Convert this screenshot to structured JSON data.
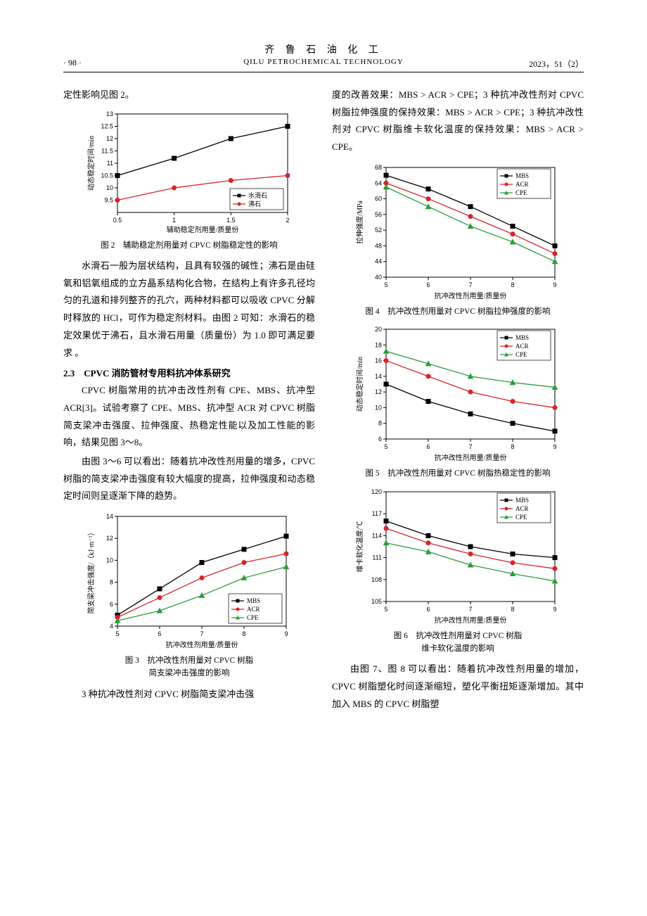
{
  "header": {
    "page_num": "· 98 ·",
    "journal_cn": "齐 鲁 石 油 化 工",
    "journal_en": "QILU PETROCHEMICAL TECHNOLOGY",
    "issue": "2023，51（2）"
  },
  "left": {
    "p1": "定性影响见图 2。",
    "fig2_caption": "图 2　辅助稳定剂用量对 CPVC 树脂稳定性的影响",
    "p2": "水滑石一般为层状结构，且具有较强的碱性；沸石是由硅氧和铝氧组成的立方晶系结构化合物，在结构上有许多孔径均匀的孔道和排列整齐的孔穴，两种材料都可以吸收 CPVC 分解时释放的 HCl，可作为稳定剂材料。由图 2 可知：水滑石的稳定效果优于沸石，且水滑石用量（质量份）为 1.0 即可满足要求 。",
    "s23": "2.3　CPVC 消防管材专用料抗冲体系研究",
    "p3": "CPVC 树脂常用的抗冲击改性剂有 CPE、MBS、抗冲型 ACR[3]。试验考察了 CPE、MBS、抗冲型 ACR 对 CPVC 树脂简支梁冲击强度、拉伸强度、热稳定性能以及加工性能的影响，结果见图 3～8。",
    "p4": "由图 3～6 可以看出：随着抗冲改性剂用量的增多，CPVC 树脂的简支梁冲击强度有较大幅度的提高，拉伸强度和动态稳定时间则呈逐渐下降的趋势。",
    "fig3_caption_l1": "图 3　抗冲改性剂用量对 CPVC 树脂",
    "fig3_caption_l2": "简支梁冲击强度的影响",
    "p5": "3 种抗冲改性剂对 CPVC 树脂简支梁冲击强"
  },
  "right": {
    "p1": "度的改善效果：MBS > ACR > CPE；3 种抗冲改性剂对 CPVC 树脂拉伸强度的保持效果：MBS > ACR > CPE；3 种抗冲改性剂对 CPVC 树脂维卡软化温度的保持效果：MBS > ACR > CPE。",
    "fig4_caption": "图 4　抗冲改性剂用量对 CPVC 树脂拉伸强度的影响",
    "fig5_caption": "图 5　抗冲改性剂用量对 CPVC 树脂热稳定性的影响",
    "fig6_caption_l1": "图 6　抗冲改性剂用量对 CPVC 树脂",
    "fig6_caption_l2": "维卡软化温度的影响",
    "p2": "由图 7、图 8 可以看出：随着抗冲改性剂用量的增加，CPVC 树脂塑化时间逐渐缩短，塑化平衡扭矩逐渐增加。其中加入 MBS 的 CPVC 树脂塑"
  },
  "colors": {
    "mbs": "#000000",
    "acr": "#d82428",
    "cpe": "#2a9d3a",
    "hydrotalcite": "#000000",
    "zeolite": "#d82428",
    "axis": "#000000",
    "bg": "#ffffff"
  },
  "fig2": {
    "type": "line",
    "xlabel": "辅助稳定剂用量/质量份",
    "ylabel": "动态稳定时间/min",
    "xlim": [
      0.5,
      2.0
    ],
    "xticks": [
      0.5,
      1.0,
      1.5,
      2.0
    ],
    "ylim": [
      9.0,
      13.0
    ],
    "yticks": [
      9.5,
      10.0,
      10.5,
      11.0,
      11.5,
      12.0,
      12.5,
      13.0
    ],
    "series": [
      {
        "name": "水滑石",
        "color": "#000000",
        "marker": "square",
        "x": [
          0.5,
          1.0,
          1.5,
          2.0
        ],
        "y": [
          10.5,
          11.2,
          12.0,
          12.5
        ]
      },
      {
        "name": "沸石",
        "color": "#d82428",
        "marker": "circle",
        "x": [
          0.5,
          1.0,
          1.5,
          2.0
        ],
        "y": [
          9.5,
          10.0,
          10.3,
          10.5
        ]
      }
    ],
    "legend_pos": "bottom-right"
  },
  "fig3": {
    "type": "line",
    "xlabel": "抗冲改性剂用量/质量份",
    "ylabel": "简支梁冲击强度/（kJ·m⁻²）",
    "xlim": [
      5,
      9
    ],
    "xticks": [
      5,
      6,
      7,
      8,
      9
    ],
    "ylim": [
      4,
      14
    ],
    "yticks": [
      4,
      6,
      8,
      10,
      12,
      14
    ],
    "series": [
      {
        "name": "MBS",
        "color": "#000000",
        "marker": "square",
        "x": [
          5,
          6,
          7,
          8,
          9
        ],
        "y": [
          5.0,
          7.4,
          9.8,
          11.0,
          12.2
        ]
      },
      {
        "name": "ACR",
        "color": "#d82428",
        "marker": "circle",
        "x": [
          5,
          6,
          7,
          8,
          9
        ],
        "y": [
          4.8,
          6.6,
          8.4,
          9.8,
          10.6
        ]
      },
      {
        "name": "CPE",
        "color": "#2a9d3a",
        "marker": "triangle",
        "x": [
          5,
          6,
          7,
          8,
          9
        ],
        "y": [
          4.5,
          5.4,
          6.8,
          8.4,
          9.4
        ]
      }
    ],
    "legend_pos": "bottom-right"
  },
  "fig4": {
    "type": "line",
    "xlabel": "抗冲改性剂用量/质量份",
    "ylabel": "拉伸强度/MPa",
    "xlim": [
      5,
      9
    ],
    "xticks": [
      5,
      6,
      7,
      8,
      9
    ],
    "ylim": [
      40,
      68
    ],
    "yticks": [
      40,
      44,
      48,
      52,
      56,
      60,
      64,
      68
    ],
    "series": [
      {
        "name": "MBS",
        "color": "#000000",
        "marker": "square",
        "x": [
          5,
          6,
          7,
          8,
          9
        ],
        "y": [
          66,
          62.5,
          58,
          53,
          48
        ]
      },
      {
        "name": "ACR",
        "color": "#d82428",
        "marker": "circle",
        "x": [
          5,
          6,
          7,
          8,
          9
        ],
        "y": [
          64,
          60,
          55.5,
          51,
          46
        ]
      },
      {
        "name": "CPE",
        "color": "#2a9d3a",
        "marker": "triangle",
        "x": [
          5,
          6,
          7,
          8,
          9
        ],
        "y": [
          63,
          58,
          53,
          49,
          44
        ]
      }
    ],
    "legend_pos": "top-right"
  },
  "fig5": {
    "type": "line",
    "xlabel": "抗冲改性剂用量/质量份",
    "ylabel": "动态稳定时间/min",
    "xlim": [
      5,
      9
    ],
    "xticks": [
      5,
      6,
      7,
      8,
      9
    ],
    "ylim": [
      6,
      20
    ],
    "yticks": [
      6,
      8,
      10,
      12,
      14,
      16,
      18,
      20
    ],
    "series": [
      {
        "name": "MBS",
        "color": "#000000",
        "marker": "square",
        "x": [
          5,
          6,
          7,
          8,
          9
        ],
        "y": [
          13.0,
          10.8,
          9.2,
          8.0,
          7.0
        ]
      },
      {
        "name": "ACR",
        "color": "#d82428",
        "marker": "circle",
        "x": [
          5,
          6,
          7,
          8,
          9
        ],
        "y": [
          16.0,
          14.0,
          12.0,
          10.8,
          10.0
        ]
      },
      {
        "name": "CPE",
        "color": "#2a9d3a",
        "marker": "triangle",
        "x": [
          5,
          6,
          7,
          8,
          9
        ],
        "y": [
          17.2,
          15.6,
          14.0,
          13.2,
          12.6
        ]
      }
    ],
    "legend_pos": "top-right"
  },
  "fig6": {
    "type": "line",
    "xlabel": "抗冲改性剂用量/质量份",
    "ylabel": "维卡软化温度/℃",
    "xlim": [
      5,
      9
    ],
    "xticks": [
      5,
      6,
      7,
      8,
      9
    ],
    "ylim": [
      105,
      120
    ],
    "yticks": [
      105,
      108,
      111,
      114,
      117,
      120
    ],
    "series": [
      {
        "name": "MBS",
        "color": "#000000",
        "marker": "square",
        "x": [
          5,
          6,
          7,
          8,
          9
        ],
        "y": [
          116.0,
          114.0,
          112.5,
          111.5,
          111.0
        ]
      },
      {
        "name": "ACR",
        "color": "#d82428",
        "marker": "circle",
        "x": [
          5,
          6,
          7,
          8,
          9
        ],
        "y": [
          115.0,
          113.0,
          111.5,
          110.3,
          109.5
        ]
      },
      {
        "name": "CPE",
        "color": "#2a9d3a",
        "marker": "triangle",
        "x": [
          5,
          6,
          7,
          8,
          9
        ],
        "y": [
          113.0,
          111.8,
          110.0,
          108.8,
          107.8
        ]
      }
    ],
    "legend_pos": "top-right"
  }
}
